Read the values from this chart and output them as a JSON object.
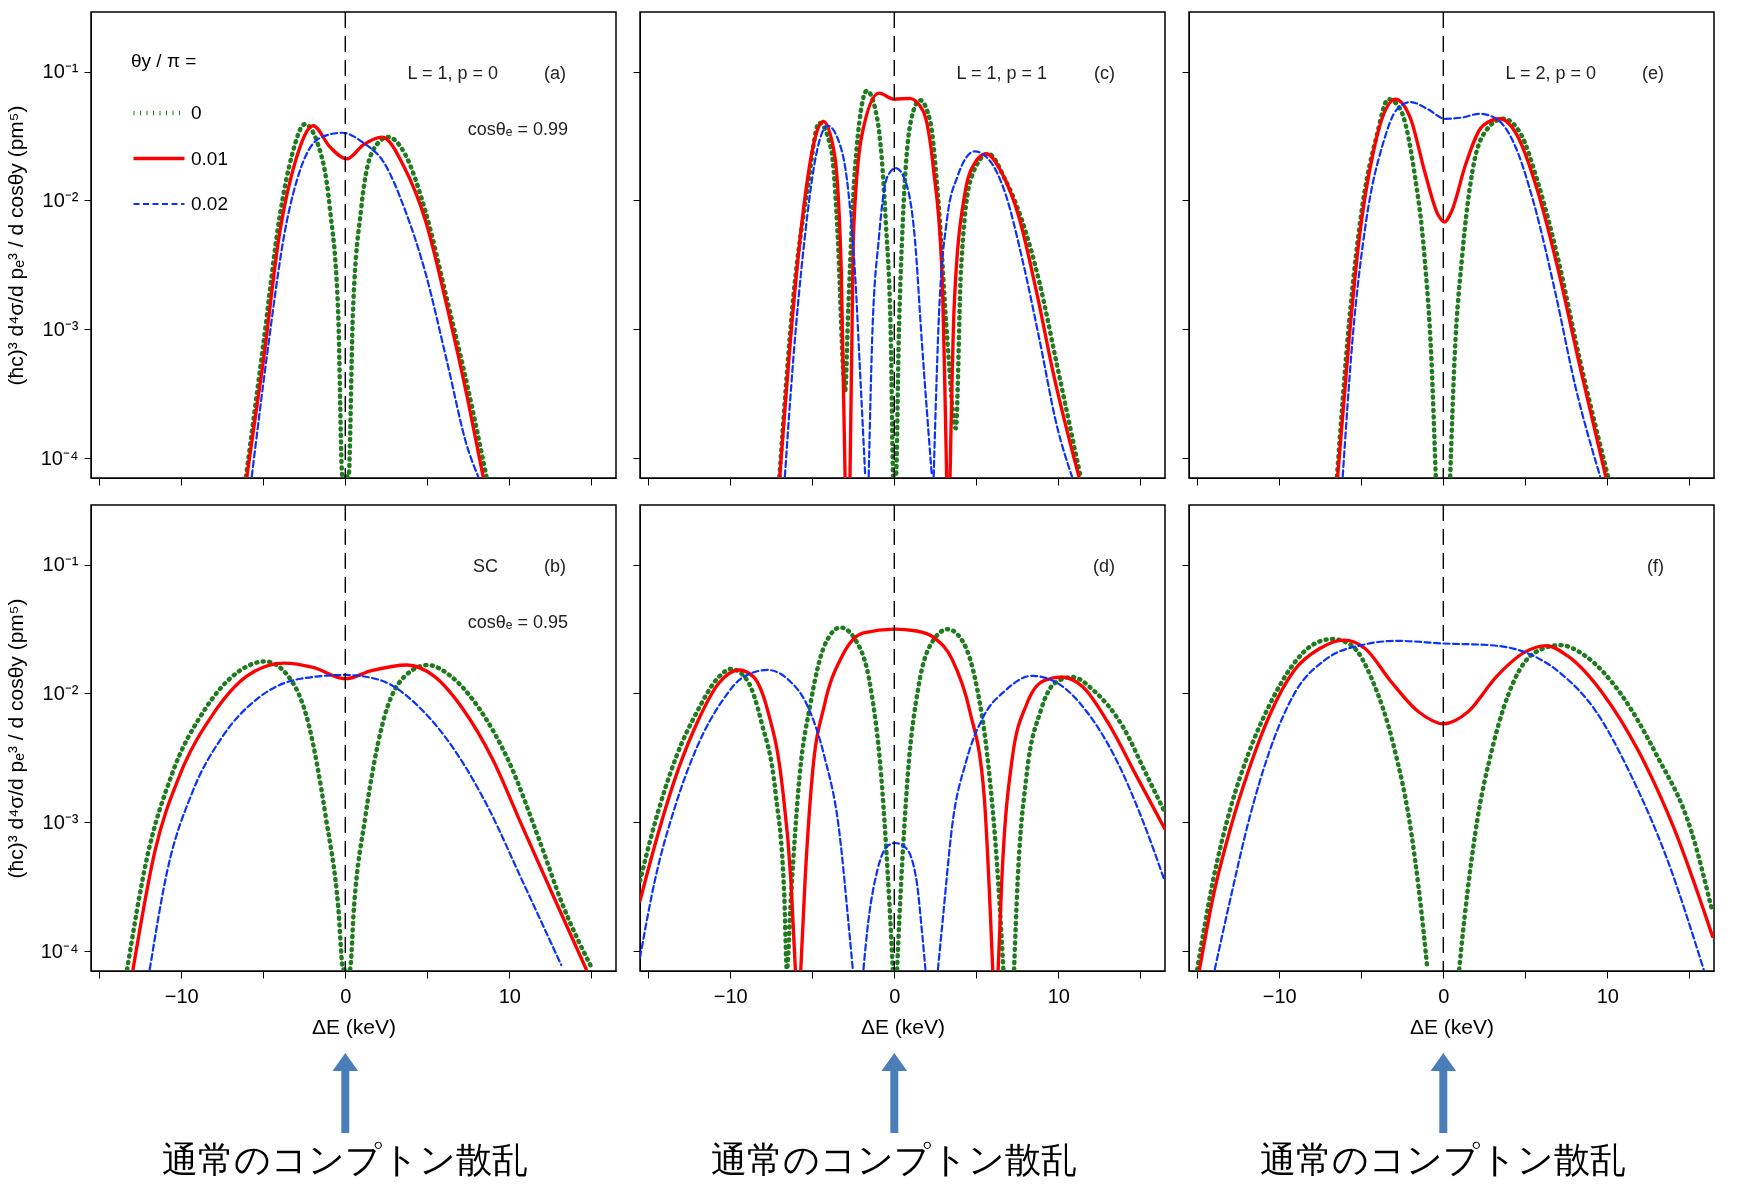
{
  "chart_data": [
    {
      "type": "line",
      "log": true,
      "xlim": [
        -15.5,
        16.5
      ],
      "ylim": [
        7e-05,
        0.29
      ],
      "tick_labels": "y",
      "ylabel": "(ħc)³ d⁴σ/d pₑ³ / d cosθy  (pm⁵)",
      "legend": "top left",
      "legend_title": "θy / π =",
      "xticks": [
        {
          "value": -15,
          "label": null
        },
        {
          "value": -10,
          "label": null
        },
        {
          "value": -5,
          "label": null
        },
        {
          "value": 0,
          "label": null
        },
        {
          "value": 5,
          "label": null
        },
        {
          "value": 10,
          "label": null
        },
        {
          "value": 15,
          "label": null
        }
      ],
      "yticks": [
        {
          "value": 0.0001,
          "label": "10⁻⁴"
        },
        {
          "value": 0.001,
          "label": "10⁻³"
        },
        {
          "value": 0.01,
          "label": "10⁻²"
        },
        {
          "value": 0.1,
          "label": "10⁻¹"
        }
      ],
      "ref_lines": [
        {
          "axis": "x",
          "value": 0,
          "color": "#000000",
          "line_style": "dashed"
        }
      ],
      "annotations": [
        "(a)",
        "L = 1,  p = 0",
        "cosθₑ = 0.99"
      ],
      "series": [
        {
          "name": "0",
          "color": "#1e7b1e",
          "line_style": "dotted",
          "x": [
            -6.05,
            -5.0,
            -4.0,
            -3.23,
            -2.47,
            -1.7,
            -0.94,
            -0.43,
            -0.18,
            0.2,
            0.46,
            0.97,
            1.73,
            2.62,
            3.63,
            4.9,
            6.2,
            7.45,
            8.6
          ],
          "values": [
            7.2e-05,
            0.00076,
            0.0075,
            0.023,
            0.039,
            0.028,
            0.0087,
            0.0013,
            7.2e-05,
            7.2e-05,
            0.0013,
            0.0087,
            0.025,
            0.031,
            0.023,
            0.0081,
            0.0017,
            0.00036,
            7.2e-05
          ]
        },
        {
          "name": "0.01",
          "color": "#ff0000",
          "line_style": "solid",
          "x": [
            -6.0,
            -5.0,
            -4.0,
            -3.0,
            -1.96,
            -0.94,
            0.08,
            1.1,
            2.24,
            3.6,
            4.9,
            6.2,
            7.45,
            8.4
          ],
          "values": [
            7.2e-05,
            0.00056,
            0.0056,
            0.021,
            0.038,
            0.026,
            0.021,
            0.027,
            0.031,
            0.018,
            0.0069,
            0.0015,
            0.00029,
            7.2e-05
          ]
        },
        {
          "name": "0.02",
          "color": "#0a32ff",
          "line_style": "dashed",
          "x": [
            -5.7,
            -4.75,
            -3.7,
            -2.7,
            -1.45,
            -0.18,
            1.1,
            2.36,
            3.6,
            4.9,
            6.2,
            7.45,
            8.1
          ],
          "values": [
            7.2e-05,
            0.00066,
            0.0056,
            0.018,
            0.031,
            0.0335,
            0.028,
            0.0196,
            0.0087,
            0.0027,
            0.00056,
            0.00012,
            7.2e-05
          ]
        }
      ]
    },
    {
      "type": "line",
      "log": true,
      "xlim": [
        -15.5,
        16.5
      ],
      "ylim": [
        7e-05,
        0.29
      ],
      "tick_labels": false,
      "xticks": [
        {
          "value": -15,
          "label": null
        },
        {
          "value": -10,
          "label": null
        },
        {
          "value": -5,
          "label": null
        },
        {
          "value": 0,
          "label": null
        },
        {
          "value": 5,
          "label": null
        },
        {
          "value": 10,
          "label": null
        },
        {
          "value": 15,
          "label": null
        }
      ],
      "yticks": [
        {
          "value": 0.0001,
          "label": null
        },
        {
          "value": 0.001,
          "label": null
        },
        {
          "value": 0.01,
          "label": null
        },
        {
          "value": 0.1,
          "label": null
        }
      ],
      "ref_lines": [
        {
          "axis": "x",
          "value": 0,
          "color": "#000000",
          "line_style": "dashed"
        }
      ],
      "annotations": [
        "(c)",
        "L = 1,  p = 1"
      ],
      "series": [
        {
          "color": "#1e7b1e",
          "line_style": "dotted",
          "x": [
            -7.0,
            -6.15,
            -5.3,
            -4.58,
            -3.85,
            -3.44,
            -3.1,
            -3.0,
            -2.8,
            -2.4,
            -1.67,
            -1.04,
            -0.52,
            -0.21,
            -0.06,
            0.1,
            0.27,
            0.52,
            1.04,
            1.56,
            2.19,
            2.7,
            3.23,
            3.75,
            4.06,
            4.69,
            5.73,
            6.77,
            7.8,
            8.85,
            9.9,
            11.35
          ],
          "values": [
            7.2e-05,
            0.0018,
            0.012,
            0.04,
            0.025,
            0.0051,
            0.00045,
            0.00033,
            0.0015,
            0.0174,
            0.071,
            0.043,
            0.0069,
            0.00083,
            7.2e-05,
            7.2e-05,
            0.00083,
            0.0069,
            0.043,
            0.06,
            0.041,
            0.0094,
            0.00083,
            0.00017,
            0.0028,
            0.015,
            0.023,
            0.0144,
            0.0069,
            0.0023,
            0.00054,
            7.2e-05
          ]
        },
        {
          "color": "#ff0000",
          "line_style": "solid",
          "x": [
            -6.98,
            -6.15,
            -5.5,
            -4.9,
            -4.33,
            -3.65,
            -3.23,
            -3.0,
            -2.85,
            -2.7,
            -2.5,
            -1.98,
            -0.94,
            0,
            0.94,
            1.77,
            2.4,
            2.9,
            3.19,
            3.3,
            3.4,
            3.65,
            4.27,
            4.9,
            5.6,
            6.56,
            7.6,
            8.65,
            9.7,
            11.25
          ],
          "values": [
            7.2e-05,
            0.0015,
            0.0093,
            0.028,
            0.041,
            0.023,
            0.0028,
            7.2e-05,
            null,
            7.2e-05,
            0.0051,
            0.032,
            0.068,
            0.061,
            0.062,
            0.049,
            0.017,
            0.0028,
            7.2e-05,
            null,
            7.2e-05,
            0.0015,
            0.0107,
            0.0195,
            0.023,
            0.0163,
            0.0074,
            0.002,
            0.00045,
            7.2e-05
          ]
        },
        {
          "color": "#0a32ff",
          "line_style": "dashed",
          "x": [
            -6.67,
            -6.15,
            -5.5,
            -4.69,
            -4.06,
            -3.44,
            -2.81,
            -2.4,
            -2.08,
            -1.77,
            -1.66,
            -1.56,
            -1.35,
            -0.94,
            -0.42,
            0.1,
            0.73,
            1.25,
            1.67,
            2.29,
            2.35,
            2.4,
            2.7,
            3.23,
            3.85,
            4.9,
            5.73,
            6.77,
            7.8,
            8.85,
            9.9,
            10.83
          ],
          "values": [
            7.2e-05,
            0.0006,
            0.0046,
            0.025,
            0.038,
            0.03,
            0.012,
            0.0028,
            0.00045,
            7.2e-05,
            null,
            7.2e-05,
            0.00083,
            0.0051,
            0.0153,
            0.0178,
            0.0135,
            0.0051,
            0.00083,
            7.2e-05,
            null,
            7.2e-05,
            0.0011,
            0.0074,
            0.0153,
            0.024,
            0.021,
            0.0113,
            0.0035,
            0.00083,
            0.00018,
            7.2e-05
          ]
        }
      ]
    },
    {
      "type": "line",
      "log": true,
      "xlim": [
        -15.5,
        16.5
      ],
      "ylim": [
        7e-05,
        0.29
      ],
      "tick_labels": false,
      "xticks": [
        {
          "value": -15,
          "label": null
        },
        {
          "value": -10,
          "label": null
        },
        {
          "value": -5,
          "label": null
        },
        {
          "value": 0,
          "label": null
        },
        {
          "value": 5,
          "label": null
        },
        {
          "value": 10,
          "label": null
        },
        {
          "value": 15,
          "label": null
        }
      ],
      "yticks": [
        {
          "value": 0.0001,
          "label": null
        },
        {
          "value": 0.001,
          "label": null
        },
        {
          "value": 0.01,
          "label": null
        },
        {
          "value": 0.1,
          "label": null
        }
      ],
      "ref_lines": [
        {
          "axis": "x",
          "value": 0,
          "color": "#000000",
          "line_style": "dashed"
        }
      ],
      "annotations": [
        "(e)",
        "L = 2,  p = 0"
      ],
      "series": [
        {
          "color": "#1e7b1e",
          "line_style": "dotted",
          "x": [
            -6.48,
            -5.75,
            -4.92,
            -4.08,
            -3.35,
            -2.62,
            -1.78,
            -1.15,
            -0.73,
            -0.46,
            0,
            0.42,
            0.69,
            1.15,
            1.78,
            2.62,
            3.66,
            4.71,
            5.75,
            7.0,
            8.26,
            10.04
          ],
          "values": [
            7.2e-05,
            0.0011,
            0.0093,
            0.031,
            0.061,
            0.051,
            0.017,
            0.0037,
            0.0006,
            7.2e-05,
            null,
            7.2e-05,
            0.0006,
            0.0037,
            0.017,
            0.035,
            0.043,
            0.033,
            0.014,
            0.0035,
            0.00063,
            7.2e-05
          ]
        },
        {
          "color": "#ff0000",
          "line_style": "solid",
          "x": [
            -6.44,
            -5.75,
            -5.13,
            -4.29,
            -2.93,
            -1.99,
            -1.15,
            -0.31,
            0.06,
            0.52,
            1.36,
            2.41,
            3.45,
            4.5,
            5.75,
            7.0,
            8.26,
            9.9
          ],
          "values": [
            7.2e-05,
            0.00081,
            0.005,
            0.023,
            0.061,
            0.043,
            0.017,
            0.0077,
            0.0068,
            0.0083,
            0.019,
            0.038,
            0.043,
            0.032,
            0.0118,
            0.0029,
            0.00056,
            7.2e-05
          ]
        },
        {
          "color": "#0a32ff",
          "line_style": "dashed",
          "x": [
            -6.13,
            -5.54,
            -4.71,
            -3.66,
            -2.82,
            -1.99,
            -0.94,
            0.1,
            1.15,
            2.2,
            3.24,
            4.29,
            5.54,
            6.8,
            8.05,
            9.56
          ],
          "values": [
            7.2e-05,
            0.00081,
            0.0068,
            0.028,
            0.051,
            0.058,
            0.051,
            0.043,
            0.044,
            0.047,
            0.043,
            0.028,
            0.0093,
            0.002,
            0.00036,
            7.2e-05
          ]
        }
      ]
    },
    {
      "type": "line",
      "log": true,
      "xlim": [
        -15.5,
        16.5
      ],
      "ylim": [
        7e-05,
        0.29
      ],
      "xlabel": "ΔE (keV)",
      "ylabel": "(ħc)³ d⁴σ/d pₑ³ / d cosθy  (pm⁵)",
      "xticks": [
        {
          "value": -15,
          "label": null
        },
        {
          "value": -10,
          "label": "−10"
        },
        {
          "value": -5,
          "label": null
        },
        0,
        {
          "value": 5,
          "label": null
        },
        10,
        {
          "value": 15,
          "label": null
        }
      ],
      "yticks": [
        {
          "value": 0.0001,
          "label": "10⁻⁴"
        },
        {
          "value": 0.001,
          "label": "10⁻³"
        },
        {
          "value": 0.01,
          "label": "10⁻²"
        },
        {
          "value": 0.1,
          "label": "10⁻¹"
        }
      ],
      "ref_lines": [
        {
          "axis": "x",
          "value": 0,
          "color": "#000000",
          "line_style": "dashed"
        }
      ],
      "annotations": [
        "(b)",
        "SC",
        "cosθₑ = 0.95",
        "通常のコンプトン散乱"
      ],
      "series": [
        {
          "color": "#1e7b1e",
          "line_style": "dotted",
          "x": [
            -13.3,
            -12.1,
            -10.6,
            -8.56,
            -6.53,
            -4.88,
            -3.48,
            -2.21,
            -1.19,
            -0.43,
            -0.13,
            0.28,
            0.53,
            1.22,
            2.24,
            3.63,
            5.03,
            6.43,
            8.2,
            10.0,
            11.77,
            13.3,
            15.07
          ],
          "values": [
            7.2e-05,
            0.00052,
            0.0023,
            0.0075,
            0.0147,
            0.0177,
            0.0136,
            0.0056,
            0.0011,
            0.00022,
            7.2e-05,
            7.2e-05,
            0.00022,
            0.0011,
            0.0056,
            0.0136,
            0.0166,
            0.0136,
            0.0075,
            0.0029,
            0.00076,
            0.00022,
            7.2e-05
          ]
        },
        {
          "color": "#ff0000",
          "line_style": "solid",
          "x": [
            -12.94,
            -11.6,
            -10.1,
            -8.06,
            -6.0,
            -3.74,
            -1.96,
            0,
            1.6,
            3.76,
            5.41,
            7.19,
            8.97,
            10.75,
            12.78,
            14.69
          ],
          "values": [
            7.2e-05,
            0.0006,
            0.0023,
            0.0069,
            0.0136,
            0.0172,
            0.0159,
            0.013,
            0.015,
            0.0166,
            0.0136,
            0.0075,
            0.0031,
            0.00095,
            0.00025,
            7.2e-05
          ]
        },
        {
          "color": "#0a32ff",
          "line_style": "dashed",
          "x": [
            -11.92,
            -10.85,
            -9.33,
            -7.55,
            -5.26,
            -2.72,
            0,
            2.1,
            4.65,
            6.68,
            8.71,
            10.75,
            13.16
          ],
          "values": [
            7.2e-05,
            0.00042,
            0.0017,
            0.0045,
            0.0093,
            0.013,
            0.0139,
            0.0127,
            0.0075,
            0.0036,
            0.0013,
            0.00036,
            7.8e-05
          ]
        }
      ]
    },
    {
      "type": "line",
      "log": true,
      "xlim": [
        -15.5,
        16.5
      ],
      "ylim": [
        7e-05,
        0.29
      ],
      "xlabel": "ΔE (keV)",
      "tick_labels": "x",
      "xticks": [
        {
          "value": -15,
          "label": null
        },
        {
          "value": -10,
          "label": "−10"
        },
        {
          "value": -5,
          "label": null
        },
        0,
        {
          "value": 5,
          "label": null
        },
        10,
        {
          "value": 15,
          "label": null
        }
      ],
      "yticks": [
        {
          "value": 0.0001,
          "label": null
        },
        {
          "value": 0.001,
          "label": null
        },
        {
          "value": 0.01,
          "label": null
        },
        {
          "value": 0.1,
          "label": null
        }
      ],
      "ref_lines": [
        {
          "axis": "x",
          "value": 0,
          "color": "#000000",
          "line_style": "dashed"
        }
      ],
      "annotations": [
        "(d)",
        "通常のコンプトン散乱"
      ],
      "series": [
        {
          "color": "#1e7b1e",
          "line_style": "dotted",
          "x": [
            -15.5,
            -14.6,
            -13.3,
            -12.0,
            -10.7,
            -9.94,
            -8.96,
            -8.1,
            -7.24,
            -6.7,
            -6.55,
            -6.3,
            -5.77,
            -5.12,
            -4.25,
            -3.28,
            -2.31,
            -1.45,
            -0.8,
            -0.26,
            -0.09,
            0.04,
            0.17,
            0.32,
            0.82,
            1.47,
            2.33,
            3.26,
            4.17,
            5.03,
            5.68,
            6.33,
            6.65,
            7.0,
            7.3,
            7.52,
            8.06,
            8.92,
            9.78,
            10.86,
            12.16,
            13.9,
            15.4,
            16.48
          ],
          "values": [
            0.00035,
            0.00098,
            0.0032,
            0.0073,
            0.0134,
            0.0155,
            0.0126,
            0.006,
            0.0017,
            0.00026,
            7.2e-05,
            0.00026,
            0.0023,
            0.0082,
            0.0236,
            0.0325,
            0.0253,
            0.0112,
            0.0023,
            0.00019,
            7.2e-05,
            null,
            7.2e-05,
            0.00019,
            0.0023,
            0.0112,
            0.0253,
            0.0315,
            0.0253,
            0.0112,
            0.0032,
            0.00035,
            7.2e-05,
            null,
            7.2e-05,
            0.00035,
            0.0023,
            0.0073,
            0.012,
            0.0134,
            0.0105,
            0.0056,
            0.0023,
            0.0012
          ]
        },
        {
          "color": "#ff0000",
          "line_style": "solid",
          "x": [
            -15.5,
            -14.6,
            -13.3,
            -12.0,
            -10.7,
            -9.44,
            -8.57,
            -7.71,
            -6.85,
            -6.3,
            -6.03,
            -5.87,
            -5.7,
            -5.44,
            -5.0,
            -4.25,
            -3.17,
            -1.88,
            0,
            1.36,
            2.44,
            3.52,
            4.6,
            5.46,
            6.0,
            6.17,
            6.33,
            6.55,
            7.2,
            8.06,
            9.14,
            10.2,
            11.5,
            13.0,
            14.75,
            16.48
          ],
          "values": [
            0.000245,
            0.00066,
            0.0023,
            0.006,
            0.012,
            0.0152,
            0.0134,
            0.0073,
            0.002,
            0.00035,
            7.2e-05,
            null,
            7.2e-05,
            0.00035,
            0.0023,
            0.0082,
            0.0196,
            0.0295,
            0.0315,
            0.0305,
            0.027,
            0.0184,
            0.0073,
            0.0017,
            7.2e-05,
            null,
            7.2e-05,
            0.00035,
            0.0032,
            0.0082,
            0.0126,
            0.0134,
            0.0112,
            0.006,
            0.0023,
            0.00089
          ]
        },
        {
          "color": "#0a32ff",
          "line_style": "dashed",
          "x": [
            -15.5,
            -14.6,
            -13.3,
            -12.0,
            -10.5,
            -9.2,
            -7.71,
            -6.41,
            -5.33,
            -4.25,
            -3.39,
            -2.74,
            -2.53,
            -2.2,
            -1.88,
            -1.66,
            -1.02,
            -0.37,
            0.06,
            0.71,
            1.36,
            1.69,
            1.9,
            2.3,
            2.66,
            2.98,
            3.52,
            4.39,
            5.46,
            6.76,
            8.38,
            10.0,
            11.7,
            13.45,
            15.18,
            16.48
          ],
          "values": [
            8.9e-05,
            0.00035,
            0.0014,
            0.0039,
            0.0087,
            0.0134,
            0.0152,
            0.0126,
            0.0082,
            0.0032,
            0.00092,
            0.00014,
            7.2e-05,
            null,
            7.2e-05,
            0.00014,
            0.00043,
            0.00066,
            0.00069,
            0.00063,
            0.00035,
            0.00014,
            7.2e-05,
            null,
            7.2e-05,
            0.00019,
            0.00092,
            0.003,
            0.0067,
            0.0105,
            0.0137,
            0.0119,
            0.0073,
            0.0032,
            0.001,
            0.00035
          ]
        }
      ]
    },
    {
      "type": "line",
      "log": true,
      "xlim": [
        -15.5,
        16.5
      ],
      "ylim": [
        7e-05,
        0.29
      ],
      "xlabel": "ΔE (keV)",
      "tick_labels": "x",
      "xticks": [
        {
          "value": -15,
          "label": null
        },
        {
          "value": -10,
          "label": "−10"
        },
        {
          "value": -5,
          "label": null
        },
        0,
        {
          "value": 5,
          "label": null
        },
        10,
        {
          "value": 15,
          "label": null
        }
      ],
      "yticks": [
        {
          "value": 0.0001,
          "label": null
        },
        {
          "value": 0.001,
          "label": null
        },
        {
          "value": 0.01,
          "label": null
        },
        {
          "value": 0.1,
          "label": null
        }
      ],
      "ref_lines": [
        {
          "axis": "x",
          "value": 0,
          "color": "#000000",
          "line_style": "dashed"
        }
      ],
      "annotations": [
        "(f)",
        "通常のコンプトン散乱"
      ],
      "series": [
        {
          "color": "#1e7b1e",
          "line_style": "dotted",
          "x": [
            -15.0,
            -14.04,
            -12.96,
            -11.88,
            -10.58,
            -9.07,
            -7.99,
            -6.8,
            -5.62,
            -4.32,
            -3.02,
            -1.94,
            -1.08,
            -0.97,
            0,
            0.97,
            1.08,
            1.94,
            3.02,
            4.32,
            5.62,
            7.13,
            8.64,
            10.8,
            12.96,
            15.12,
            16.41
          ],
          "values": [
            7.2e-05,
            0.00035,
            0.0013,
            0.0034,
            0.0082,
            0.0173,
            0.0237,
            0.0264,
            0.0237,
            0.0126,
            0.0039,
            0.00081,
            0.0001,
            7.2e-05,
            null,
            7.2e-05,
            0.0001,
            0.00081,
            0.0039,
            0.0126,
            0.0209,
            0.0237,
            0.0196,
            0.01,
            0.0034,
            0.00085,
            0.0002
          ]
        },
        {
          "color": "#ff0000",
          "line_style": "solid",
          "x": [
            -14.86,
            -14.04,
            -12.96,
            -11.88,
            -10.58,
            -9.07,
            -7.56,
            -6.05,
            -4.75,
            -3.24,
            -1.51,
            0,
            1.51,
            3.24,
            4.97,
            6.26,
            7.56,
            9.72,
            11.88,
            14.04,
            16.41
          ],
          "values": [
            7.2e-05,
            0.00026,
            0.00091,
            0.0025,
            0.0068,
            0.0152,
            0.0222,
            0.0259,
            0.0222,
            0.0126,
            0.0072,
            0.0058,
            0.0072,
            0.0135,
            0.0209,
            0.0235,
            0.0196,
            0.01,
            0.0036,
            0.00091,
            0.00013
          ]
        },
        {
          "color": "#0a32ff",
          "line_style": "dashed",
          "x": [
            -13.93,
            -12.96,
            -11.88,
            -10.58,
            -9.07,
            -7.13,
            -4.97,
            -2.81,
            0,
            2.81,
            4.97,
            7.13,
            9.29,
            11.45,
            13.61,
            15.87
          ],
          "values": [
            7.2e-05,
            0.00026,
            0.001,
            0.0036,
            0.01,
            0.0185,
            0.0237,
            0.0256,
            0.0244,
            0.0237,
            0.0209,
            0.0144,
            0.0073,
            0.0023,
            0.00053,
            7.2e-05
          ]
        }
      ]
    }
  ]
}
